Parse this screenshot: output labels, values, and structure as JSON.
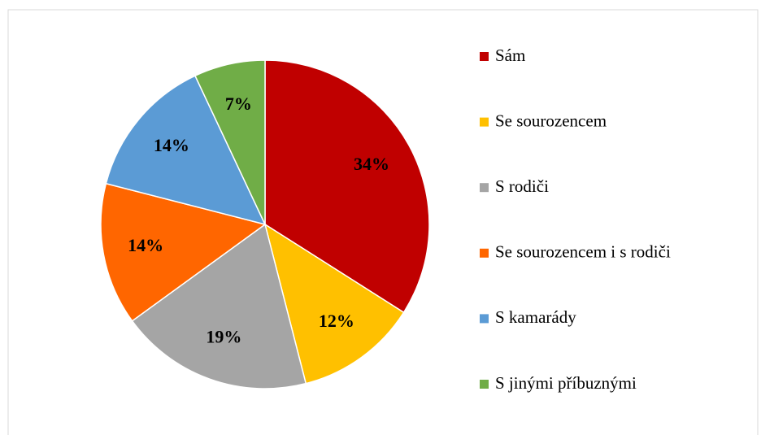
{
  "chart_data": {
    "type": "pie",
    "categories": [
      "Sám",
      "Se sourozencem",
      "S rodiči",
      "Se sourozencem i s rodiči",
      "S kamarády",
      "S jinými příbuznými"
    ],
    "values": [
      34,
      12,
      19,
      14,
      14,
      7
    ],
    "value_labels": [
      "34%",
      "12%",
      "19%",
      "14%",
      "14%",
      "7%"
    ],
    "colors": [
      "#c00000",
      "#ffc000",
      "#a5a5a5",
      "#ff6600",
      "#5b9bd5",
      "#70ad47"
    ],
    "legend": "right"
  }
}
